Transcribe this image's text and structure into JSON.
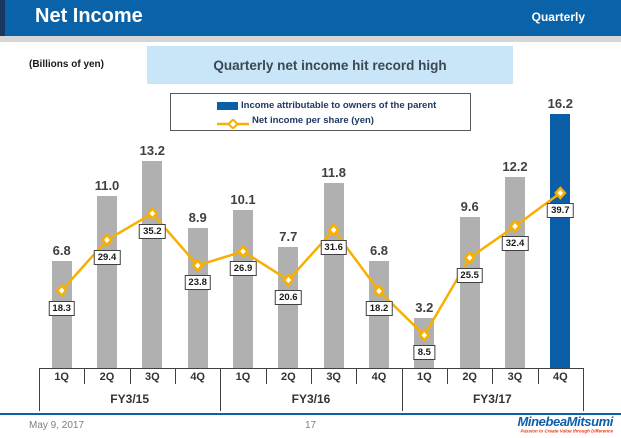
{
  "header": {
    "title": "Net Income",
    "tag": "Quarterly"
  },
  "subtitle": {
    "unit_label": "(Billions of yen)",
    "callout": "Quarterly net income hit record high"
  },
  "legend": {
    "bar_label": "Income attributable to owners of the parent",
    "line_label": "Net income per share (yen)"
  },
  "chart_data": {
    "type": "bar+line combo",
    "quarter_labels": [
      "1Q",
      "2Q",
      "3Q",
      "4Q",
      "1Q",
      "2Q",
      "3Q",
      "4Q",
      "1Q",
      "2Q",
      "3Q",
      "4Q"
    ],
    "group_labels": [
      "FY3/15",
      "FY3/16",
      "FY3/17"
    ],
    "series": [
      {
        "name": "Income attributable to owners of the parent",
        "type": "bar",
        "unit": "billions of yen",
        "values": [
          6.8,
          11.0,
          13.2,
          8.9,
          10.1,
          7.7,
          11.8,
          6.8,
          3.2,
          9.6,
          12.2,
          16.2
        ],
        "color": "#0A5FA8",
        "muted_color": "#B0B0B0",
        "highlight_index": 11
      },
      {
        "name": "Net income per share (yen)",
        "type": "line",
        "unit": "yen",
        "values": [
          18.3,
          29.4,
          35.2,
          23.8,
          26.9,
          20.6,
          31.6,
          18.2,
          8.5,
          25.5,
          32.4,
          39.7
        ],
        "color": "#F7AF00",
        "marker": "diamond"
      }
    ],
    "value_labels_shown": true,
    "ylim_bar": [
      0,
      17.6
    ],
    "ylim_line": [
      0,
      44
    ],
    "grid": false,
    "legend_position": "top-center"
  },
  "footer": {
    "date": "May 9, 2017",
    "page": "17",
    "logo": "MinebeaMitsumi",
    "tagline": "Passion to Create Value through Difference"
  },
  "colors": {
    "header_blue": "#0A62A8",
    "corner_navy": "#17375E",
    "callout_bg": "#C9E6F8",
    "bar_grey": "#B0B0B0",
    "bar_blue": "#0A5FA8",
    "line_gold": "#F7AF00",
    "footer_rule_blue": "#0A5FA8",
    "logo_red": "#E8380D"
  }
}
